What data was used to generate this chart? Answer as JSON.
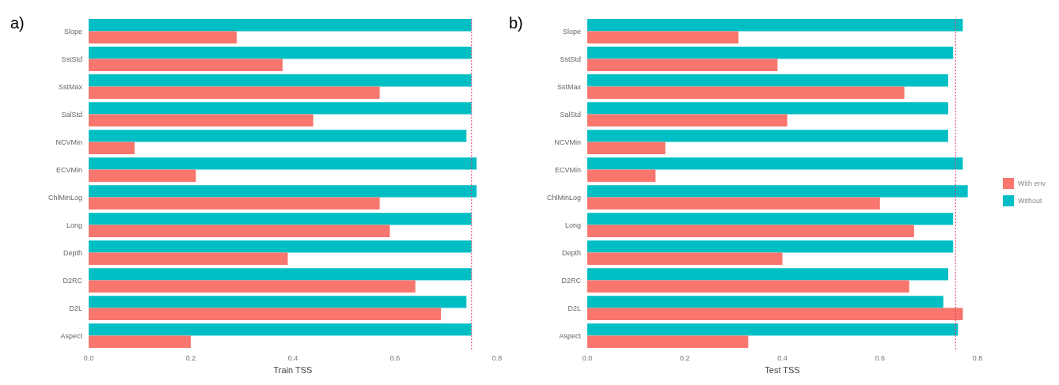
{
  "chart_data": [
    {
      "type": "bar",
      "orientation": "horizontal",
      "title": "a)",
      "xlabel": "Train TSS",
      "categories": [
        "Slope",
        "SstStd",
        "SstMax",
        "SalStd",
        "NCVMin",
        "ECVMin",
        "ChlMinLog",
        "Long",
        "Depth",
        "D2RC",
        "D2L",
        "Aspect"
      ],
      "series": [
        {
          "color": "#00bfc4",
          "values": [
            0.75,
            0.75,
            0.75,
            0.75,
            0.74,
            0.76,
            0.76,
            0.75,
            0.75,
            0.75,
            0.74,
            0.75
          ]
        },
        {
          "color": "#f8766d",
          "values": [
            0.29,
            0.38,
            0.57,
            0.44,
            0.09,
            0.21,
            0.57,
            0.59,
            0.39,
            0.64,
            0.69,
            0.2
          ]
        }
      ],
      "xlim": [
        0,
        0.8
      ],
      "xticks": [
        {
          "value": 0,
          "label": "0.0"
        },
        0.2,
        0.4,
        0.6,
        0.8
      ],
      "grid": false,
      "legend": false,
      "ref_lines": [
        {
          "axis": "x",
          "value": 0.75,
          "color": "#e8336f",
          "line_style": "dotted"
        }
      ]
    },
    {
      "type": "bar",
      "orientation": "horizontal",
      "title": "b)",
      "xlabel": "Test TSS",
      "categories": [
        "Slope",
        "SstStd",
        "SstMax",
        "SalStd",
        "NCVMin",
        "ECVMin",
        "ChlMinLog",
        "Long",
        "Depth",
        "D2RC",
        "D2L",
        "Aspect"
      ],
      "series": [
        {
          "name": "Without",
          "color": "#00bfc4",
          "values": [
            0.77,
            0.75,
            0.74,
            0.74,
            0.74,
            0.77,
            0.78,
            0.75,
            0.75,
            0.74,
            0.73,
            0.76
          ]
        },
        {
          "name": "With env",
          "color": "#f8766d",
          "values": [
            0.31,
            0.39,
            0.65,
            0.41,
            0.16,
            0.14,
            0.6,
            0.67,
            0.4,
            0.66,
            0.77,
            0.33
          ]
        }
      ],
      "xlim": [
        0,
        0.8
      ],
      "xticks": [
        {
          "value": 0,
          "label": "0.0"
        },
        0.2,
        0.4,
        0.6,
        0.8
      ],
      "grid": false,
      "legend": "right",
      "ref_lines": [
        {
          "axis": "x",
          "value": 0.755,
          "color": "#e8336f",
          "line_style": "dotted"
        }
      ]
    }
  ]
}
